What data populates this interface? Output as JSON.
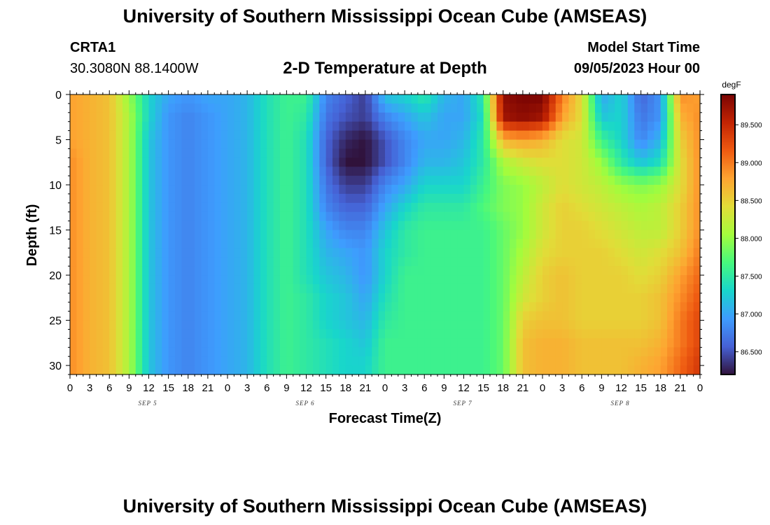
{
  "header": {
    "title": "University of Southern Mississippi Ocean Cube (AMSEAS)",
    "station_id": "CRTA1",
    "station_coords": "30.3080N  88.1400W",
    "chart_title": "2-D Temperature at Depth",
    "model_start_label": "Model Start Time",
    "model_start_value": "09/05/2023 Hour 00"
  },
  "footer": {
    "repeated_title": "University of Southern Mississippi Ocean Cube (AMSEAS)"
  },
  "chart_data": {
    "type": "heatmap",
    "title": "2-D Temperature at Depth",
    "xlabel": "Forecast Time(Z)",
    "ylabel": "Depth (ft)",
    "colorbar_unit": "degF",
    "x_tick_labels": [
      "0",
      "3",
      "6",
      "9",
      "12",
      "15",
      "18",
      "21",
      "0",
      "3",
      "6",
      "9",
      "12",
      "15",
      "18",
      "21",
      "0",
      "3",
      "6",
      "9",
      "12",
      "15",
      "18",
      "21",
      "0",
      "3",
      "6",
      "9",
      "12",
      "15",
      "18",
      "21",
      "0"
    ],
    "x_hours_range": [
      0,
      96
    ],
    "day_labels": [
      {
        "label": "SEP 5",
        "hour": 12
      },
      {
        "label": "SEP 6",
        "hour": 36
      },
      {
        "label": "SEP 7",
        "hour": 60
      },
      {
        "label": "SEP 8",
        "hour": 84
      }
    ],
    "y_tick_labels": [
      "0",
      "5",
      "10",
      "15",
      "20",
      "25",
      "30"
    ],
    "y_ticks": [
      0,
      5,
      10,
      15,
      20,
      25,
      30
    ],
    "ylim": [
      0,
      31
    ],
    "y_inverted": true,
    "colorbar_tick_labels": [
      "89.500",
      "89.000",
      "88.500",
      "88.000",
      "87.500",
      "87.000",
      "86.500"
    ],
    "colorbar_ticks": [
      89.5,
      89.0,
      88.5,
      88.0,
      87.5,
      87.0,
      86.5
    ],
    "color_range": [
      86.2,
      89.9
    ],
    "x_hours": [
      0,
      3,
      6,
      9,
      12,
      15,
      18,
      21,
      24,
      27,
      30,
      33,
      36,
      39,
      42,
      45,
      48,
      51,
      54,
      57,
      60,
      63,
      66,
      69,
      72,
      75,
      78,
      81,
      84,
      87,
      90,
      93,
      96
    ],
    "depths": [
      0,
      2.5,
      5,
      7.5,
      10,
      12.5,
      15,
      17.5,
      20,
      22.5,
      25,
      27.5,
      30
    ],
    "values_degF": [
      [
        88.8,
        88.7,
        88.6,
        88.0,
        87.3,
        87.0,
        86.9,
        87.0,
        87.0,
        87.1,
        87.4,
        87.6,
        87.6,
        86.8,
        86.6,
        86.4,
        87.2,
        87.3,
        87.5,
        87.1,
        87.0,
        87.5,
        89.8,
        89.9,
        89.9,
        89.0,
        88.4,
        87.0,
        87.3,
        86.6,
        86.9,
        88.9,
        88.8
      ],
      [
        88.8,
        88.7,
        88.6,
        88.1,
        87.3,
        86.9,
        86.8,
        86.9,
        87.0,
        87.1,
        87.4,
        87.6,
        87.5,
        86.7,
        86.5,
        86.4,
        86.8,
        87.0,
        87.2,
        87.0,
        87.0,
        87.4,
        89.7,
        89.8,
        89.7,
        88.8,
        88.4,
        87.2,
        87.3,
        86.7,
        86.9,
        88.7,
        88.9
      ],
      [
        88.8,
        88.7,
        88.6,
        88.1,
        87.2,
        86.9,
        86.8,
        86.9,
        87.0,
        87.1,
        87.4,
        87.6,
        87.4,
        86.6,
        86.3,
        86.2,
        86.5,
        86.8,
        87.0,
        87.0,
        87.1,
        87.5,
        88.7,
        88.8,
        88.7,
        88.4,
        88.3,
        87.6,
        87.3,
        86.8,
        87.1,
        88.5,
        88.9
      ],
      [
        88.9,
        88.7,
        88.6,
        88.1,
        87.2,
        86.9,
        86.8,
        86.9,
        87.0,
        87.1,
        87.4,
        87.6,
        87.4,
        86.6,
        86.2,
        86.2,
        86.5,
        86.8,
        87.1,
        87.1,
        87.2,
        87.5,
        88.1,
        88.3,
        88.4,
        88.4,
        88.3,
        88.0,
        87.5,
        87.2,
        87.4,
        88.4,
        88.9
      ],
      [
        88.9,
        88.7,
        88.6,
        88.1,
        87.2,
        86.9,
        86.8,
        86.9,
        87.0,
        87.1,
        87.4,
        87.6,
        87.4,
        86.7,
        86.4,
        86.4,
        86.8,
        87.0,
        87.3,
        87.3,
        87.3,
        87.6,
        87.9,
        88.0,
        88.2,
        88.4,
        88.3,
        88.2,
        88.0,
        87.9,
        88.0,
        88.4,
        88.9
      ],
      [
        88.9,
        88.7,
        88.6,
        88.1,
        87.2,
        86.9,
        86.8,
        86.9,
        87.0,
        87.1,
        87.4,
        87.6,
        87.4,
        86.8,
        86.6,
        86.6,
        87.0,
        87.3,
        87.5,
        87.5,
        87.5,
        87.7,
        87.9,
        88.0,
        88.3,
        88.5,
        88.4,
        88.3,
        88.2,
        88.1,
        88.2,
        88.5,
        88.9
      ],
      [
        88.9,
        88.7,
        88.6,
        88.1,
        87.2,
        86.9,
        86.8,
        86.9,
        87.0,
        87.1,
        87.4,
        87.6,
        87.4,
        87.0,
        86.8,
        86.8,
        87.2,
        87.5,
        87.6,
        87.6,
        87.6,
        87.6,
        87.8,
        88.0,
        88.3,
        88.5,
        88.5,
        88.4,
        88.3,
        88.2,
        88.2,
        88.5,
        88.9
      ],
      [
        88.9,
        88.7,
        88.6,
        88.1,
        87.2,
        86.9,
        86.8,
        86.9,
        87.0,
        87.1,
        87.4,
        87.6,
        87.4,
        87.1,
        87.0,
        86.9,
        87.3,
        87.5,
        87.6,
        87.6,
        87.6,
        87.6,
        87.8,
        88.1,
        88.4,
        88.5,
        88.5,
        88.5,
        88.4,
        88.3,
        88.4,
        88.6,
        89.0
      ],
      [
        88.9,
        88.7,
        88.6,
        88.1,
        87.2,
        86.9,
        86.8,
        86.9,
        87.0,
        87.1,
        87.4,
        87.6,
        87.4,
        87.2,
        87.1,
        86.9,
        87.3,
        87.6,
        87.6,
        87.6,
        87.6,
        87.6,
        87.8,
        88.2,
        88.5,
        88.6,
        88.5,
        88.5,
        88.5,
        88.4,
        88.5,
        88.8,
        89.1
      ],
      [
        88.9,
        88.7,
        88.6,
        88.1,
        87.2,
        86.9,
        86.8,
        86.9,
        87.0,
        87.1,
        87.4,
        87.6,
        87.5,
        87.3,
        87.2,
        87.0,
        87.4,
        87.6,
        87.6,
        87.6,
        87.6,
        87.6,
        87.8,
        88.3,
        88.5,
        88.6,
        88.5,
        88.5,
        88.5,
        88.5,
        88.6,
        88.9,
        89.2
      ],
      [
        88.9,
        88.7,
        88.6,
        88.1,
        87.2,
        86.9,
        86.8,
        86.9,
        87.0,
        87.1,
        87.4,
        87.6,
        87.5,
        87.3,
        87.2,
        87.1,
        87.5,
        87.6,
        87.6,
        87.6,
        87.6,
        87.6,
        87.8,
        88.5,
        88.6,
        88.6,
        88.5,
        88.5,
        88.5,
        88.5,
        88.6,
        89.0,
        89.3
      ],
      [
        88.9,
        88.7,
        88.6,
        88.1,
        87.2,
        86.9,
        86.8,
        86.9,
        87.0,
        87.1,
        87.4,
        87.6,
        87.5,
        87.4,
        87.3,
        87.2,
        87.6,
        87.6,
        87.6,
        87.6,
        87.6,
        87.6,
        87.8,
        88.6,
        88.7,
        88.7,
        88.6,
        88.6,
        88.6,
        88.6,
        88.7,
        89.0,
        89.3
      ],
      [
        88.9,
        88.7,
        88.6,
        88.1,
        87.2,
        86.9,
        86.8,
        86.9,
        87.0,
        87.1,
        87.4,
        87.6,
        87.5,
        87.4,
        87.3,
        87.3,
        87.6,
        87.6,
        87.6,
        87.6,
        87.6,
        87.6,
        87.8,
        88.6,
        88.7,
        88.7,
        88.6,
        88.6,
        88.6,
        88.7,
        88.8,
        89.1,
        89.4
      ]
    ]
  }
}
